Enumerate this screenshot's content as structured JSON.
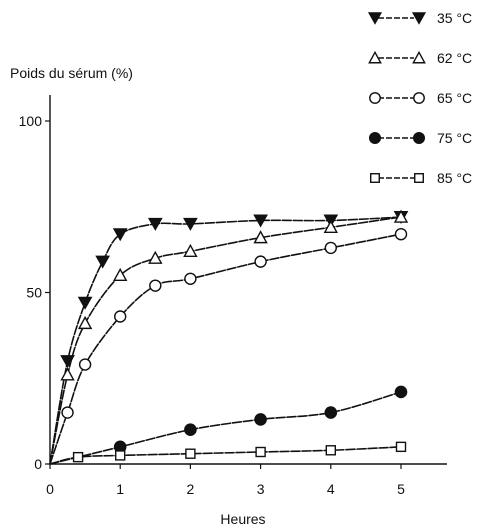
{
  "chart_data": {
    "type": "line",
    "ylabel": "Poids du sérum (%)",
    "xlabel": "Heures",
    "xlim": [
      0,
      5.5
    ],
    "ylim": [
      0,
      100
    ],
    "xticks": [
      0,
      1,
      2,
      3,
      4,
      5
    ],
    "yticks": [
      0,
      50,
      100
    ],
    "grid": false,
    "legend_position": "top-right",
    "series": [
      {
        "name": "35 °C",
        "marker": "triangle-down-filled",
        "x": [
          0,
          0.25,
          0.5,
          0.75,
          1,
          1.5,
          2,
          3,
          4,
          5
        ],
        "y": [
          0,
          30,
          47,
          59,
          67,
          70,
          70,
          71,
          71,
          72
        ]
      },
      {
        "name": "62 °C",
        "marker": "triangle-up-open",
        "x": [
          0,
          0.25,
          0.5,
          1,
          1.5,
          2,
          3,
          4,
          5
        ],
        "y": [
          0,
          26,
          41,
          55,
          60,
          62,
          66,
          69,
          72
        ]
      },
      {
        "name": "65 °C",
        "marker": "circle-open",
        "x": [
          0,
          0.25,
          0.5,
          1,
          1.5,
          2,
          3,
          4,
          5
        ],
        "y": [
          0,
          15,
          29,
          43,
          52,
          54,
          59,
          63,
          67
        ]
      },
      {
        "name": "75 °C",
        "marker": "circle-filled",
        "x": [
          0,
          1,
          2,
          3,
          4,
          5
        ],
        "y": [
          0,
          5,
          10,
          13,
          15,
          21
        ]
      },
      {
        "name": "85 °C",
        "marker": "square-open",
        "x": [
          0,
          0.4,
          1,
          2,
          3,
          4,
          5
        ],
        "y": [
          0,
          2,
          2.5,
          3,
          3.5,
          4,
          5
        ]
      }
    ]
  }
}
